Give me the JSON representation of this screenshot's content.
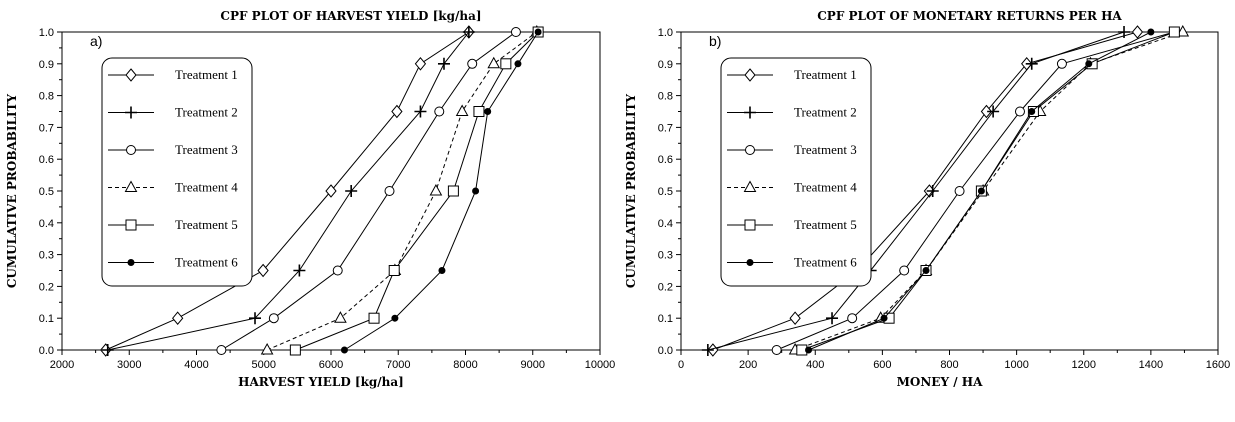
{
  "chart_data": [
    {
      "type": "line",
      "panel_label": "a)",
      "title": "CPF PLOT OF HARVEST YIELD [kg/ha]",
      "xlabel": "HARVEST YIELD [kg/ha]",
      "ylabel": "CUMULATIVE PROBABILITY",
      "xlim": [
        2000,
        10000
      ],
      "ylim": [
        0.0,
        1.0
      ],
      "xticks": [
        "2000",
        "3000",
        "4000",
        "5000",
        "6000",
        "7000",
        "8000",
        "9000",
        "10000"
      ],
      "yticks": [
        "0.0",
        "0.1",
        "0.2",
        "0.3",
        "0.4",
        "0.5",
        "0.6",
        "0.7",
        "0.8",
        "0.9",
        "1.0"
      ],
      "legend_position": "upper-left",
      "series": [
        {
          "name": "Treatment 1",
          "marker": "diamond",
          "dash": "solid",
          "x": [
            2650,
            3720,
            4990,
            6000,
            6980,
            7330,
            8050
          ],
          "y": [
            0.0,
            0.1,
            0.25,
            0.5,
            0.75,
            0.9,
            1.0
          ]
        },
        {
          "name": "Treatment 2",
          "marker": "plus",
          "dash": "solid",
          "x": [
            2680,
            4870,
            5530,
            6300,
            7330,
            7680,
            8050
          ],
          "y": [
            0.0,
            0.1,
            0.25,
            0.5,
            0.75,
            0.9,
            1.0
          ]
        },
        {
          "name": "Treatment 3",
          "marker": "circle-open",
          "dash": "solid",
          "x": [
            4370,
            5150,
            6100,
            6870,
            7610,
            8100,
            8750
          ],
          "y": [
            0.0,
            0.1,
            0.25,
            0.5,
            0.75,
            0.9,
            1.0
          ]
        },
        {
          "name": "Treatment 4",
          "marker": "triangle",
          "dash": "dashed",
          "x": [
            5050,
            6140,
            6950,
            7560,
            7950,
            8420,
            9060
          ],
          "y": [
            0.0,
            0.1,
            0.25,
            0.5,
            0.75,
            0.9,
            1.0
          ]
        },
        {
          "name": "Treatment 5",
          "marker": "square",
          "dash": "solid",
          "x": [
            5470,
            6640,
            6940,
            7820,
            8200,
            8600,
            9080
          ],
          "y": [
            0.0,
            0.1,
            0.25,
            0.5,
            0.75,
            0.9,
            1.0
          ]
        },
        {
          "name": "Treatment 6",
          "marker": "circle-filled",
          "dash": "solid",
          "x": [
            6200,
            6950,
            7650,
            8150,
            8330,
            8780,
            9080
          ],
          "y": [
            0.0,
            0.1,
            0.25,
            0.5,
            0.75,
            0.9,
            1.0
          ]
        }
      ]
    },
    {
      "type": "line",
      "panel_label": "b)",
      "title": "CPF PLOT OF MONETARY RETURNS PER HA",
      "xlabel": "MONEY / HA",
      "ylabel": "CUMULATIVE PROBABILITY",
      "xlim": [
        0,
        1600
      ],
      "ylim": [
        0.0,
        1.0
      ],
      "xticks": [
        "0",
        "200",
        "400",
        "600",
        "800",
        "1000",
        "1200",
        "1400",
        "1600"
      ],
      "yticks": [
        "0.0",
        "0.1",
        "0.2",
        "0.3",
        "0.4",
        "0.5",
        "0.6",
        "0.7",
        "0.8",
        "0.9",
        "1.0"
      ],
      "legend_position": "upper-left",
      "series": [
        {
          "name": "Treatment 1",
          "marker": "diamond",
          "dash": "solid",
          "x": [
            95,
            340,
            525,
            740,
            910,
            1030,
            1360
          ],
          "y": [
            0.0,
            0.1,
            0.25,
            0.5,
            0.75,
            0.9,
            1.0
          ]
        },
        {
          "name": "Treatment 2",
          "marker": "plus",
          "dash": "solid",
          "x": [
            80,
            450,
            565,
            750,
            930,
            1045,
            1320
          ],
          "y": [
            0.0,
            0.1,
            0.25,
            0.5,
            0.75,
            0.9,
            1.0
          ]
        },
        {
          "name": "Treatment 3",
          "marker": "circle-open",
          "dash": "solid",
          "x": [
            285,
            510,
            665,
            830,
            1010,
            1135,
            1470
          ],
          "y": [
            0.0,
            0.1,
            0.25,
            0.5,
            0.75,
            0.9,
            1.0
          ]
        },
        {
          "name": "Treatment 4",
          "marker": "triangle",
          "dash": "dashed",
          "x": [
            340,
            595,
            730,
            900,
            1070,
            1220,
            1495
          ],
          "y": [
            0.0,
            0.1,
            0.25,
            0.5,
            0.75,
            0.9,
            1.0
          ]
        },
        {
          "name": "Treatment 5",
          "marker": "square",
          "dash": "solid",
          "x": [
            360,
            620,
            730,
            895,
            1050,
            1225,
            1470
          ],
          "y": [
            0.0,
            0.1,
            0.25,
            0.5,
            0.75,
            0.9,
            1.0
          ]
        },
        {
          "name": "Treatment 6",
          "marker": "circle-filled",
          "dash": "solid",
          "x": [
            380,
            605,
            730,
            895,
            1045,
            1215,
            1400
          ],
          "y": [
            0.0,
            0.1,
            0.25,
            0.5,
            0.75,
            0.9,
            1.0
          ]
        }
      ]
    }
  ]
}
